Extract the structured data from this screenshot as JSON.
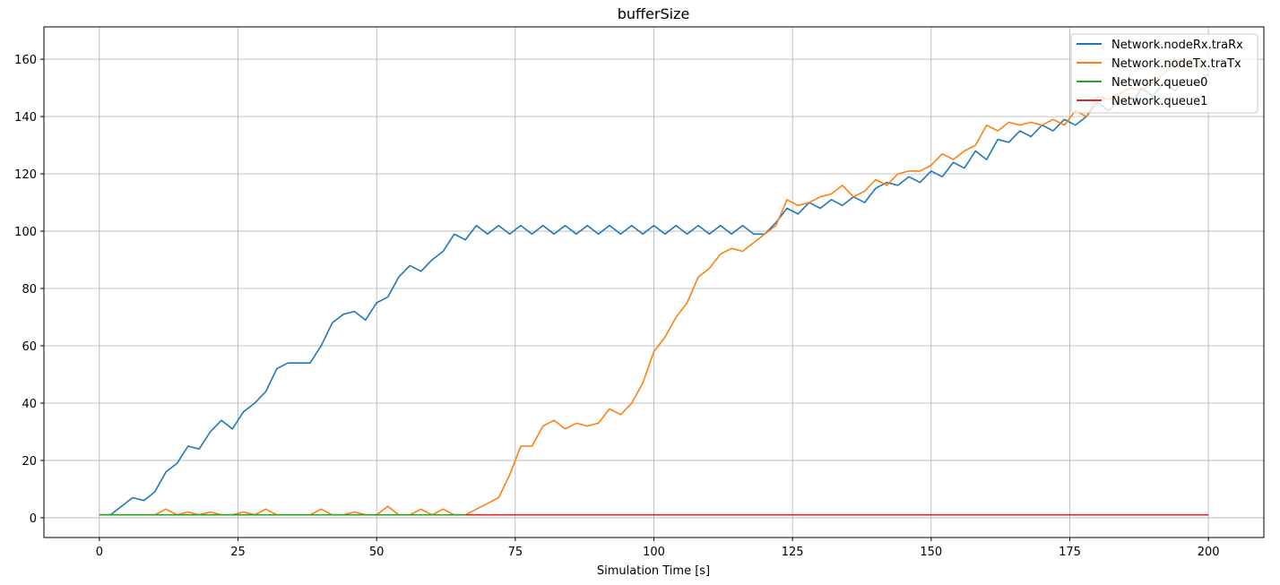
{
  "chart_data": {
    "type": "line",
    "title": "bufferSize",
    "x_label": "Simulation Time [s]",
    "x": [
      0,
      2,
      4,
      6,
      8,
      10,
      12,
      14,
      16,
      18,
      20,
      22,
      24,
      26,
      28,
      30,
      32,
      34,
      36,
      38,
      40,
      42,
      44,
      46,
      48,
      50,
      52,
      54,
      56,
      58,
      60,
      62,
      64,
      66,
      68,
      70,
      72,
      74,
      76,
      78,
      80,
      82,
      84,
      86,
      88,
      90,
      92,
      94,
      96,
      98,
      100,
      102,
      104,
      106,
      108,
      110,
      112,
      114,
      116,
      118,
      120,
      122,
      124,
      126,
      128,
      130,
      132,
      134,
      136,
      138,
      140,
      142,
      144,
      146,
      148,
      150,
      152,
      154,
      156,
      158,
      160,
      162,
      164,
      166,
      168,
      170,
      172,
      174,
      176,
      178,
      180,
      182,
      184,
      186,
      188,
      190,
      192,
      194,
      196,
      198,
      200
    ],
    "series": [
      {
        "name": "Network.nodeRx.traRx",
        "color": "#1f77b4",
        "values": [
          1,
          1,
          4,
          7,
          6,
          9,
          16,
          19,
          25,
          24,
          30,
          34,
          31,
          37,
          40,
          44,
          52,
          54,
          54,
          54,
          60,
          68,
          71,
          72,
          69,
          75,
          77,
          84,
          88,
          86,
          90,
          93,
          99,
          97,
          102,
          99,
          102,
          99,
          102,
          99,
          102,
          99,
          102,
          99,
          102,
          99,
          102,
          99,
          102,
          99,
          102,
          99,
          102,
          99,
          102,
          99,
          102,
          99,
          102,
          99,
          99,
          103,
          108,
          106,
          110,
          108,
          111,
          109,
          112,
          110,
          115,
          117,
          116,
          119,
          117,
          121,
          119,
          124,
          122,
          128,
          125,
          132,
          131,
          135,
          133,
          137,
          135,
          139,
          137,
          140,
          145,
          142,
          146,
          144,
          150,
          147,
          152,
          149,
          153,
          151,
          155
        ]
      },
      {
        "name": "Network.nodeTx.traTx",
        "color": "#ff7f0e",
        "values": [
          1,
          1,
          1,
          1,
          1,
          1,
          3,
          1,
          2,
          1,
          2,
          1,
          1,
          2,
          1,
          3,
          1,
          1,
          1,
          1,
          3,
          1,
          1,
          2,
          1,
          1,
          4,
          1,
          1,
          3,
          1,
          3,
          1,
          1,
          3,
          5,
          7,
          15,
          25,
          25,
          32,
          34,
          31,
          33,
          32,
          33,
          38,
          36,
          40,
          47,
          58,
          63,
          70,
          75,
          84,
          87,
          92,
          94,
          93,
          96,
          99,
          102,
          111,
          109,
          110,
          112,
          113,
          116,
          112,
          114,
          118,
          116,
          120,
          121,
          121,
          123,
          127,
          125,
          128,
          130,
          137,
          135,
          138,
          137,
          138,
          137,
          139,
          137,
          142,
          140,
          147,
          146,
          148,
          150,
          149,
          152,
          155,
          160,
          157,
          158,
          156
        ]
      },
      {
        "name": "Network.queue0",
        "color": "#2ca02c",
        "values": [
          1,
          1,
          1,
          1,
          1,
          1,
          1,
          1,
          1,
          1,
          1,
          1,
          1,
          1,
          1,
          1,
          1,
          1,
          1,
          1,
          1,
          1,
          1,
          1,
          1,
          1,
          1,
          1,
          1,
          1,
          1,
          1,
          1,
          1,
          null,
          null,
          null,
          null,
          null,
          null,
          null,
          null,
          null,
          null,
          null,
          null,
          null,
          null,
          null,
          null,
          null,
          null,
          null,
          null,
          null,
          null,
          null,
          null,
          null,
          null,
          null,
          null,
          null,
          null,
          null,
          null,
          null,
          null,
          null,
          null,
          null,
          null,
          null,
          null,
          null,
          null,
          null,
          null,
          null,
          null,
          null,
          null,
          null,
          null,
          null,
          null,
          null,
          null,
          null,
          null,
          null,
          null,
          null,
          null,
          null,
          null,
          null,
          null,
          null,
          null,
          null
        ]
      },
      {
        "name": "Network.queue1",
        "color": "#d62728",
        "values": [
          null,
          null,
          null,
          null,
          null,
          null,
          null,
          null,
          null,
          null,
          null,
          null,
          null,
          null,
          null,
          null,
          null,
          null,
          null,
          null,
          null,
          null,
          null,
          null,
          null,
          null,
          null,
          null,
          null,
          null,
          null,
          null,
          null,
          1,
          1,
          1,
          1,
          1,
          1,
          1,
          1,
          1,
          1,
          1,
          1,
          1,
          1,
          1,
          1,
          1,
          1,
          1,
          1,
          1,
          1,
          1,
          1,
          1,
          1,
          1,
          1,
          1,
          1,
          1,
          1,
          1,
          1,
          1,
          1,
          1,
          1,
          1,
          1,
          1,
          1,
          1,
          1,
          1,
          1,
          1,
          1,
          1,
          1,
          1,
          1,
          1,
          1,
          1,
          1,
          1,
          1,
          1,
          1,
          1,
          1,
          1,
          1,
          1,
          1,
          1,
          1
        ]
      }
    ],
    "xlim": [
      -10,
      210
    ],
    "ylim": [
      -6.9,
      171.3
    ],
    "xticks": [
      0,
      25,
      50,
      75,
      100,
      125,
      150,
      175,
      200
    ],
    "yticks": [
      0,
      20,
      40,
      60,
      80,
      100,
      120,
      140,
      160
    ],
    "grid": true,
    "legend": "upper right"
  }
}
